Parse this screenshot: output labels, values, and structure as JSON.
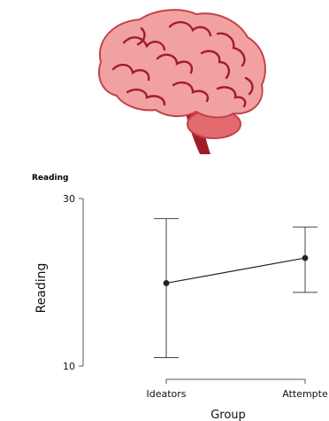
{
  "illustration": {
    "icon": "brain-icon",
    "colors": {
      "brain": "#f2a1a1",
      "brain_outline": "#c4424b",
      "folds": "#a11c2a",
      "cerebellum": "#e36a6f",
      "stem": "#a11c2a"
    }
  },
  "chart_data": {
    "type": "line",
    "title": "Reading",
    "ylabel": "Reading",
    "xlabel": "Group",
    "categories": [
      "Ideators",
      "Attempte"
    ],
    "ylim": [
      10,
      30
    ],
    "yticks": [
      10,
      30
    ],
    "series": [
      {
        "values": [
          19.9,
          22.9
        ],
        "error_low": [
          11.0,
          18.8
        ],
        "error_high": [
          27.6,
          26.6
        ],
        "color": "#222222"
      }
    ],
    "grid": false,
    "legend": "none"
  }
}
